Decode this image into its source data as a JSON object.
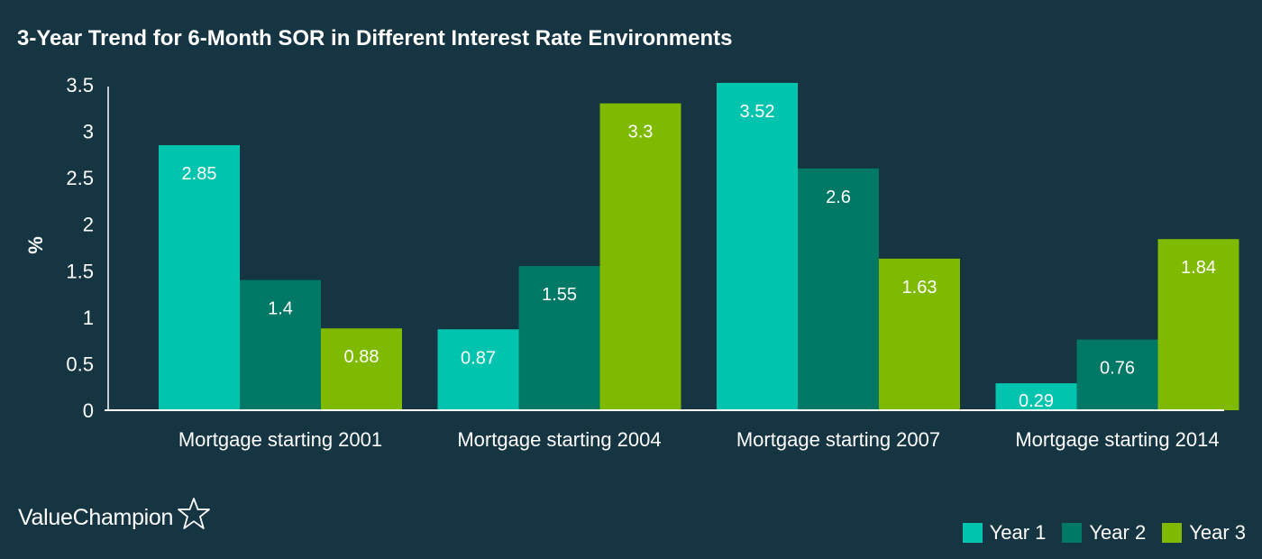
{
  "chart_data": {
    "type": "bar",
    "title": "3-Year Trend for 6-Month SOR in Different Interest Rate Environments",
    "ylabel": "%",
    "xlabel": "",
    "ylim": [
      0,
      3.5
    ],
    "yticks": [
      0,
      0.5,
      1,
      1.5,
      2,
      2.5,
      3,
      3.5
    ],
    "ytick_labels": [
      "0",
      "0.5",
      "1",
      "1.5",
      "2",
      "2.5",
      "3",
      "3.5"
    ],
    "grid": false,
    "legend_position": "bottom-right",
    "categories": [
      "Mortgage starting 2001",
      "Mortgage starting 2004",
      "Mortgage starting 2007",
      "Mortgage starting 2014"
    ],
    "series": [
      {
        "name": "Year 1",
        "color": "#00C4AE",
        "values": [
          2.85,
          0.87,
          3.52,
          0.29
        ],
        "labels": [
          "2.85",
          "0.87",
          "3.52",
          "0.29"
        ]
      },
      {
        "name": "Year 2",
        "color": "#007866",
        "values": [
          1.4,
          1.55,
          2.6,
          0.76
        ],
        "labels": [
          "1.4",
          "1.55",
          "2.6",
          "0.76"
        ]
      },
      {
        "name": "Year 3",
        "color": "#7FBA00",
        "values": [
          0.88,
          3.3,
          1.63,
          1.84
        ],
        "labels": [
          "0.88",
          "3.3",
          "1.63",
          "1.84"
        ]
      }
    ]
  },
  "brand": {
    "name": "ValueChampion",
    "icon": "star-outline-icon"
  },
  "colors": {
    "background": "#163542",
    "text": "#FFFFFF",
    "axis": "#FFFFFF"
  }
}
